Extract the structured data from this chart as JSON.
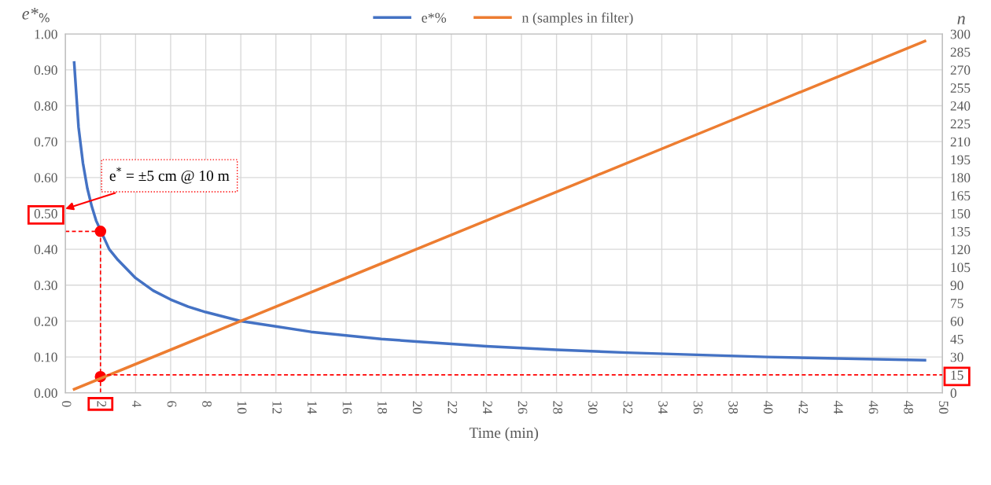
{
  "chart_data": {
    "type": "line",
    "xlabel": "Time (min)",
    "ylabel": "e*$_{%}$",
    "y2label": "n",
    "xlim": [
      0,
      50
    ],
    "xticks": [
      0,
      2,
      4,
      6,
      8,
      10,
      12,
      14,
      16,
      18,
      20,
      22,
      24,
      26,
      28,
      30,
      32,
      34,
      36,
      38,
      40,
      42,
      44,
      46,
      48,
      50
    ],
    "ylim": [
      0,
      1
    ],
    "yticks": [
      {
        "value": 0,
        "label": "0.00"
      },
      {
        "value": 0.1,
        "label": "0.10"
      },
      {
        "value": 0.2,
        "label": "0.20"
      },
      {
        "value": 0.3,
        "label": "0.30"
      },
      {
        "value": 0.4,
        "label": "0.40"
      },
      {
        "value": 0.5,
        "label": "0.50"
      },
      {
        "value": 0.6,
        "label": "0.60"
      },
      {
        "value": 0.7,
        "label": "0.70"
      },
      {
        "value": 0.8,
        "label": "0.80"
      },
      {
        "value": 0.9,
        "label": "0.90"
      },
      {
        "value": 1,
        "label": "1.00"
      }
    ],
    "y2lim": [
      0,
      300
    ],
    "y2ticks": [
      0,
      15,
      30,
      45,
      60,
      75,
      90,
      105,
      120,
      135,
      150,
      165,
      180,
      195,
      210,
      225,
      240,
      255,
      270,
      285,
      300
    ],
    "grid": true,
    "legend": "top",
    "marker": "none",
    "line_style": "solid",
    "annotations": [
      "e$^{*}$ = ±5 cm @ 10 m"
    ],
    "series": [
      {
        "name": "e*%",
        "color": "#4472c4",
        "x": [
          0.5,
          0.75,
          1,
          1.25,
          1.5,
          1.75,
          2.5,
          3,
          4,
          5,
          6,
          7,
          8,
          10,
          12,
          14,
          16,
          18,
          20,
          24,
          28,
          32,
          36,
          40,
          44,
          49
        ],
        "values": [
          0.92,
          0.74,
          0.64,
          0.57,
          0.52,
          0.48,
          0.4,
          0.37,
          0.32,
          0.285,
          0.26,
          0.24,
          0.225,
          0.2,
          0.185,
          0.17,
          0.16,
          0.15,
          0.143,
          0.13,
          0.12,
          0.112,
          0.106,
          0.1,
          0.096,
          0.091
        ]
      },
      {
        "name": "n (samples in filter)",
        "color": "#ed7d31",
        "axis": "y2",
        "x": [
          0.5,
          10,
          20,
          30,
          40,
          49
        ],
        "values": [
          3,
          60,
          120,
          180,
          240,
          294
        ]
      },
      {
        "color": "#ff0000",
        "line_style": "dashed",
        "x": [
          0,
          2
        ],
        "values": [
          0.45,
          0.45
        ]
      },
      {
        "color": "#ff0000",
        "line_style": "dashed",
        "x": [
          2,
          2
        ],
        "values": [
          0.45,
          0
        ]
      },
      {
        "color": "#ff0000",
        "line_style": "dashed",
        "axis": "y2",
        "x": [
          2,
          50
        ],
        "values": [
          15,
          15
        ]
      },
      {
        "type": "scatter",
        "color": "#ff0000",
        "marker": "circle",
        "x": [
          2,
          2
        ],
        "values": [
          0.45,
          0.045
        ]
      }
    ]
  }
}
